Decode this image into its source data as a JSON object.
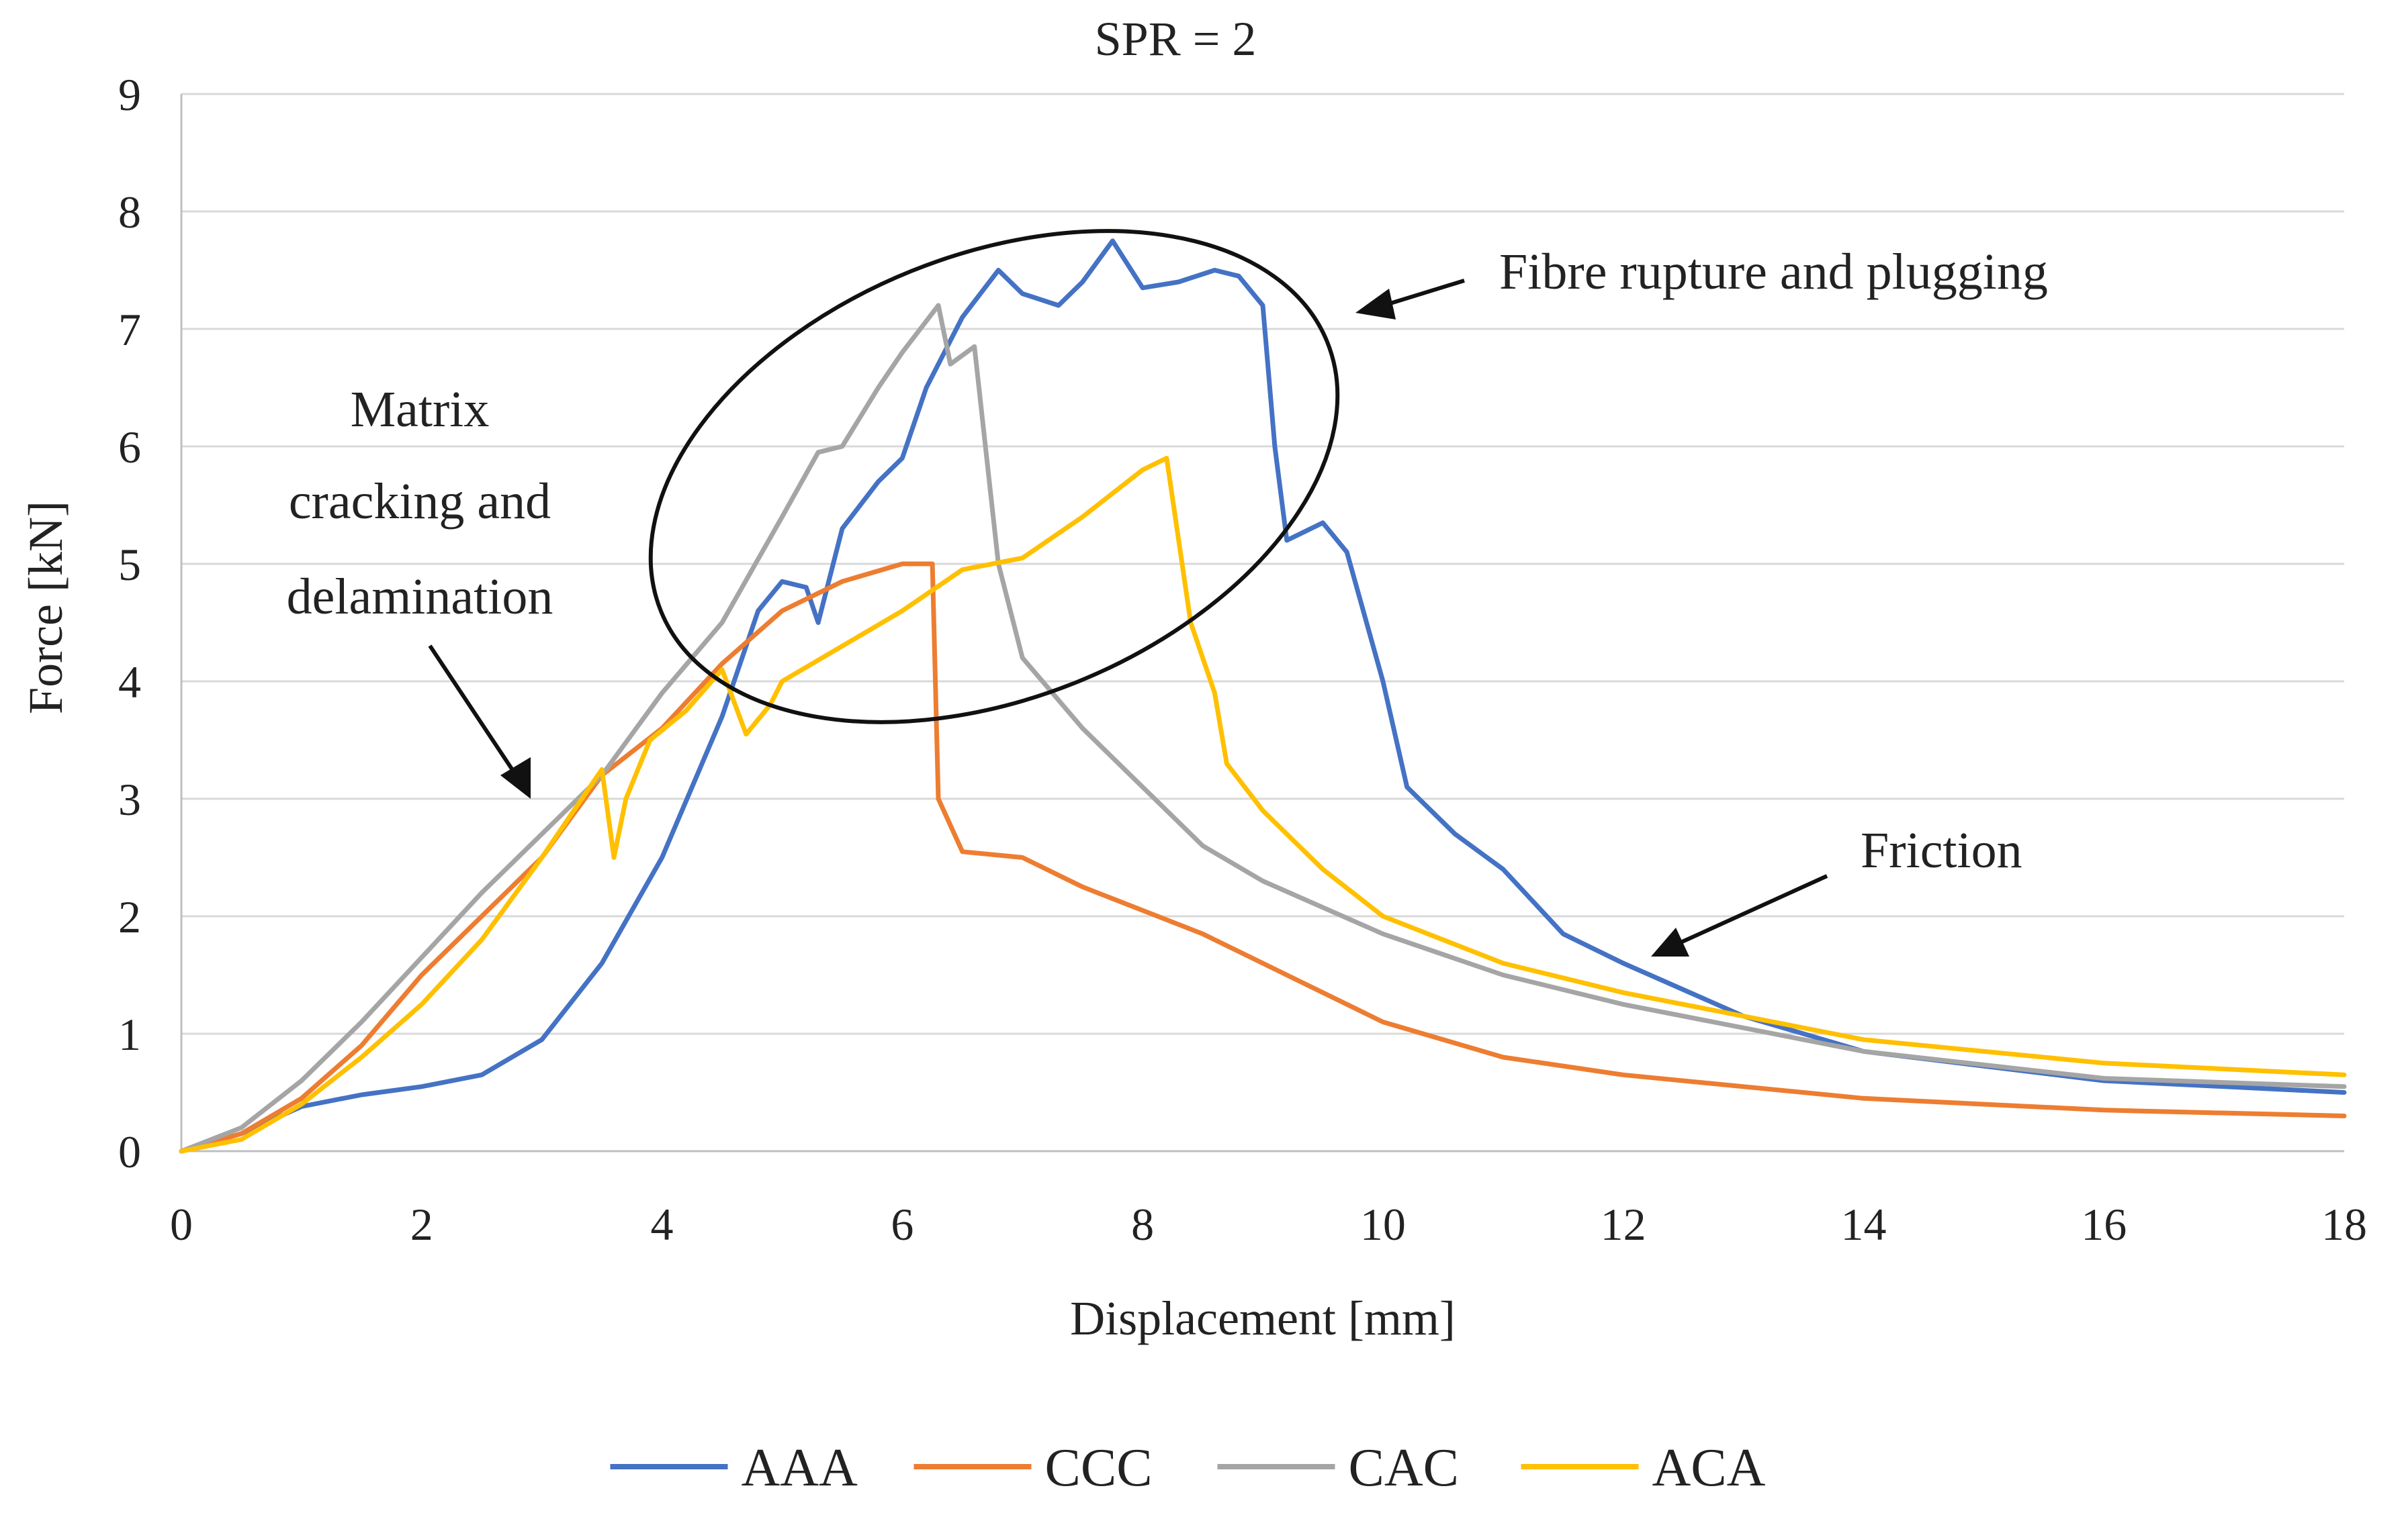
{
  "chart_data": {
    "type": "line",
    "title": "SPR = 2",
    "xlabel": "Displacement [mm]",
    "ylabel": "Force [kN]",
    "xlim": [
      0,
      18
    ],
    "ylim": [
      0,
      9
    ],
    "xticks": [
      0,
      2,
      4,
      6,
      8,
      10,
      12,
      14,
      16,
      18
    ],
    "yticks": [
      0,
      1,
      2,
      3,
      4,
      5,
      6,
      7,
      8,
      9
    ],
    "grid": "horizontal",
    "legend_position": "bottom",
    "series": [
      {
        "name": "AAA",
        "color": "#4472c4",
        "points": [
          [
            0,
            0
          ],
          [
            0.5,
            0.15
          ],
          [
            1,
            0.38
          ],
          [
            1.5,
            0.48
          ],
          [
            2,
            0.55
          ],
          [
            2.5,
            0.65
          ],
          [
            3,
            0.95
          ],
          [
            3.5,
            1.6
          ],
          [
            4,
            2.5
          ],
          [
            4.5,
            3.7
          ],
          [
            4.8,
            4.6
          ],
          [
            5,
            4.85
          ],
          [
            5.2,
            4.8
          ],
          [
            5.3,
            4.5
          ],
          [
            5.5,
            5.3
          ],
          [
            5.8,
            5.7
          ],
          [
            6,
            5.9
          ],
          [
            6.2,
            6.5
          ],
          [
            6.5,
            7.1
          ],
          [
            6.8,
            7.5
          ],
          [
            7,
            7.3
          ],
          [
            7.3,
            7.2
          ],
          [
            7.5,
            7.4
          ],
          [
            7.75,
            7.75
          ],
          [
            8,
            7.35
          ],
          [
            8.3,
            7.4
          ],
          [
            8.6,
            7.5
          ],
          [
            8.8,
            7.45
          ],
          [
            9,
            7.2
          ],
          [
            9.1,
            6.0
          ],
          [
            9.2,
            5.2
          ],
          [
            9.5,
            5.35
          ],
          [
            9.7,
            5.1
          ],
          [
            10,
            4.0
          ],
          [
            10.2,
            3.1
          ],
          [
            10.6,
            2.7
          ],
          [
            11,
            2.4
          ],
          [
            11.5,
            1.85
          ],
          [
            12,
            1.6
          ],
          [
            13,
            1.15
          ],
          [
            14,
            0.85
          ],
          [
            16,
            0.6
          ],
          [
            18,
            0.5
          ]
        ]
      },
      {
        "name": "CCC",
        "color": "#ed7d31",
        "points": [
          [
            0,
            0
          ],
          [
            0.5,
            0.15
          ],
          [
            1,
            0.45
          ],
          [
            1.5,
            0.9
          ],
          [
            2,
            1.5
          ],
          [
            2.5,
            2.0
          ],
          [
            3,
            2.5
          ],
          [
            3.5,
            3.2
          ],
          [
            4,
            3.6
          ],
          [
            4.5,
            4.15
          ],
          [
            5,
            4.6
          ],
          [
            5.5,
            4.85
          ],
          [
            6,
            5.0
          ],
          [
            6.25,
            5.0
          ],
          [
            6.3,
            3.0
          ],
          [
            6.5,
            2.55
          ],
          [
            7,
            2.5
          ],
          [
            7.5,
            2.25
          ],
          [
            8,
            2.05
          ],
          [
            8.5,
            1.85
          ],
          [
            9,
            1.6
          ],
          [
            10,
            1.1
          ],
          [
            11,
            0.8
          ],
          [
            12,
            0.65
          ],
          [
            14,
            0.45
          ],
          [
            16,
            0.35
          ],
          [
            18,
            0.3
          ]
        ]
      },
      {
        "name": "CAC",
        "color": "#a5a5a5",
        "points": [
          [
            0,
            0
          ],
          [
            0.5,
            0.2
          ],
          [
            1,
            0.6
          ],
          [
            1.5,
            1.1
          ],
          [
            2,
            1.65
          ],
          [
            2.5,
            2.2
          ],
          [
            3,
            2.7
          ],
          [
            3.5,
            3.2
          ],
          [
            4,
            3.9
          ],
          [
            4.5,
            4.5
          ],
          [
            5,
            5.4
          ],
          [
            5.3,
            5.95
          ],
          [
            5.5,
            6.0
          ],
          [
            5.8,
            6.5
          ],
          [
            6,
            6.8
          ],
          [
            6.3,
            7.2
          ],
          [
            6.4,
            6.7
          ],
          [
            6.6,
            6.85
          ],
          [
            6.8,
            5.0
          ],
          [
            7,
            4.2
          ],
          [
            7.5,
            3.6
          ],
          [
            8,
            3.1
          ],
          [
            8.5,
            2.6
          ],
          [
            9,
            2.3
          ],
          [
            10,
            1.85
          ],
          [
            11,
            1.5
          ],
          [
            12,
            1.25
          ],
          [
            14,
            0.85
          ],
          [
            16,
            0.62
          ],
          [
            18,
            0.55
          ]
        ]
      },
      {
        "name": "ACA",
        "color": "#ffc000",
        "points": [
          [
            0,
            0
          ],
          [
            0.5,
            0.1
          ],
          [
            1,
            0.4
          ],
          [
            1.5,
            0.8
          ],
          [
            2,
            1.25
          ],
          [
            2.5,
            1.8
          ],
          [
            3,
            2.5
          ],
          [
            3.4,
            3.1
          ],
          [
            3.5,
            3.25
          ],
          [
            3.6,
            2.5
          ],
          [
            3.7,
            3.0
          ],
          [
            3.9,
            3.5
          ],
          [
            4.2,
            3.75
          ],
          [
            4.5,
            4.1
          ],
          [
            4.7,
            3.55
          ],
          [
            4.9,
            3.8
          ],
          [
            5,
            4.0
          ],
          [
            5.5,
            4.3
          ],
          [
            6,
            4.6
          ],
          [
            6.5,
            4.95
          ],
          [
            7,
            5.05
          ],
          [
            7.5,
            5.4
          ],
          [
            8,
            5.8
          ],
          [
            8.2,
            5.9
          ],
          [
            8.4,
            4.5
          ],
          [
            8.6,
            3.9
          ],
          [
            8.7,
            3.3
          ],
          [
            9,
            2.9
          ],
          [
            9.5,
            2.4
          ],
          [
            10,
            2.0
          ],
          [
            11,
            1.6
          ],
          [
            12,
            1.35
          ],
          [
            14,
            0.95
          ],
          [
            16,
            0.75
          ],
          [
            18,
            0.65
          ]
        ]
      }
    ],
    "annotations": [
      {
        "text_lines": [
          "Matrix",
          "cracking and",
          "delamination"
        ]
      },
      {
        "text": "Fibre rupture and plugging"
      },
      {
        "text": "Friction"
      }
    ]
  }
}
